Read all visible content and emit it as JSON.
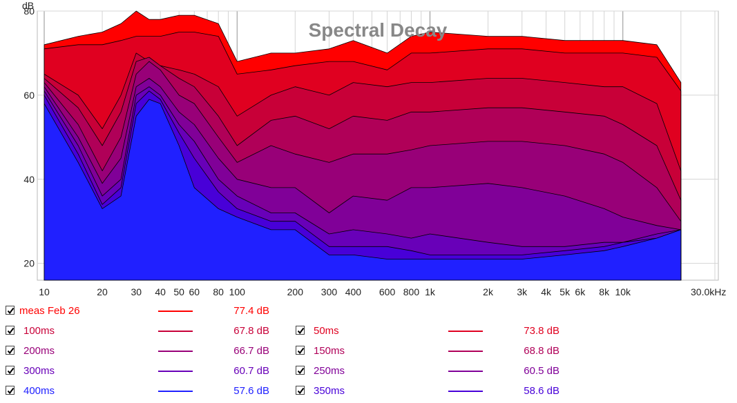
{
  "chart_data": {
    "type": "area",
    "title": "Spectral Decay",
    "ylabel": "dB",
    "xlabel": "",
    "x_scale": "log",
    "xlim": [
      10,
      30000
    ],
    "ylim": [
      16,
      80
    ],
    "grid": true,
    "x_tick_labels": [
      {
        "f": 10,
        "label": "10"
      },
      {
        "f": 20,
        "label": "20"
      },
      {
        "f": 30,
        "label": "30"
      },
      {
        "f": 40,
        "label": "40"
      },
      {
        "f": 50,
        "label": "50"
      },
      {
        "f": 60,
        "label": "60"
      },
      {
        "f": 80,
        "label": "80"
      },
      {
        "f": 100,
        "label": "100"
      },
      {
        "f": 200,
        "label": "200"
      },
      {
        "f": 300,
        "label": "300"
      },
      {
        "f": 400,
        "label": "400"
      },
      {
        "f": 600,
        "label": "600"
      },
      {
        "f": 800,
        "label": "800"
      },
      {
        "f": 1000,
        "label": "1k"
      },
      {
        "f": 2000,
        "label": "2k"
      },
      {
        "f": 3000,
        "label": "3k"
      },
      {
        "f": 4000,
        "label": "4k"
      },
      {
        "f": 5000,
        "label": "5k"
      },
      {
        "f": 6000,
        "label": "6k"
      },
      {
        "f": 8000,
        "label": "8k"
      },
      {
        "f": 10000,
        "label": "10k"
      },
      {
        "f": 30000,
        "label": "30.0kHz"
      }
    ],
    "y_ticks": [
      20,
      40,
      60,
      80
    ],
    "x": [
      10,
      15,
      20,
      25,
      30,
      35,
      40,
      50,
      60,
      80,
      100,
      150,
      200,
      300,
      400,
      600,
      800,
      1000,
      2000,
      3000,
      5000,
      8000,
      10000,
      15000,
      20000
    ],
    "series": [
      {
        "name": "meas Feb 26",
        "color": "#ff0000",
        "legend_value": "77.4 dB",
        "values": [
          72,
          74,
          75,
          77,
          80,
          78,
          78,
          79,
          79,
          77,
          68,
          70,
          70,
          71,
          73,
          70,
          74,
          75,
          74,
          74,
          73,
          73,
          73,
          72,
          63
        ]
      },
      {
        "name": "50ms",
        "color": "#e00020",
        "legend_value": "73.8 dB",
        "values": [
          71,
          72,
          72,
          73,
          74,
          74,
          74,
          75,
          75,
          74,
          65,
          66,
          67,
          68,
          68,
          66,
          70,
          70,
          71,
          71,
          70,
          70,
          70,
          69,
          61
        ]
      },
      {
        "name": "100ms",
        "color": "#c80038",
        "legend_value": "67.8 dB",
        "values": [
          65,
          60,
          52,
          60,
          70,
          68,
          67,
          66,
          65,
          62,
          55,
          60,
          62,
          60,
          63,
          62,
          63,
          63,
          64,
          64,
          63,
          62,
          62,
          58,
          42
        ]
      },
      {
        "name": "150ms",
        "color": "#b00058",
        "legend_value": "68.8 dB",
        "values": [
          64,
          57,
          48,
          56,
          68,
          69,
          67,
          64,
          62,
          55,
          48,
          54,
          55,
          52,
          55,
          54,
          56,
          56,
          57,
          57,
          56,
          55,
          53,
          48,
          35
        ]
      },
      {
        "name": "200ms",
        "color": "#980078",
        "legend_value": "66.7 dB",
        "values": [
          63,
          53,
          42,
          50,
          65,
          68,
          66,
          60,
          58,
          50,
          44,
          48,
          46,
          44,
          46,
          46,
          47,
          48,
          49,
          49,
          48,
          46,
          44,
          38,
          30
        ]
      },
      {
        "name": "250ms",
        "color": "#800098",
        "legend_value": "60.5 dB",
        "values": [
          62,
          50,
          39,
          45,
          62,
          64,
          62,
          56,
          53,
          45,
          40,
          38,
          38,
          32,
          36,
          35,
          38,
          38,
          39,
          38,
          36,
          33,
          31,
          29,
          28
        ]
      },
      {
        "name": "300ms",
        "color": "#6800b8",
        "legend_value": "60.7 dB",
        "values": [
          61,
          48,
          36,
          40,
          60,
          62,
          60,
          53,
          49,
          40,
          36,
          32,
          32,
          27,
          28,
          27,
          26,
          27,
          25,
          24,
          24,
          25,
          25,
          27,
          28
        ]
      },
      {
        "name": "350ms",
        "color": "#4800d8",
        "legend_value": "58.6 dB",
        "values": [
          60,
          46,
          34,
          38,
          58,
          61,
          59,
          51,
          45,
          37,
          33,
          30,
          30,
          24,
          24,
          24,
          23,
          22,
          22,
          22,
          23,
          24,
          25,
          26,
          28
        ]
      },
      {
        "name": "400ms",
        "color": "#2020ff",
        "legend_value": "57.6 dB",
        "values": [
          58,
          44,
          33,
          36,
          55,
          59,
          58,
          48,
          38,
          33,
          31,
          28,
          28,
          22,
          22,
          21,
          21,
          21,
          21,
          21,
          22,
          23,
          24,
          26,
          28
        ]
      }
    ]
  }
}
